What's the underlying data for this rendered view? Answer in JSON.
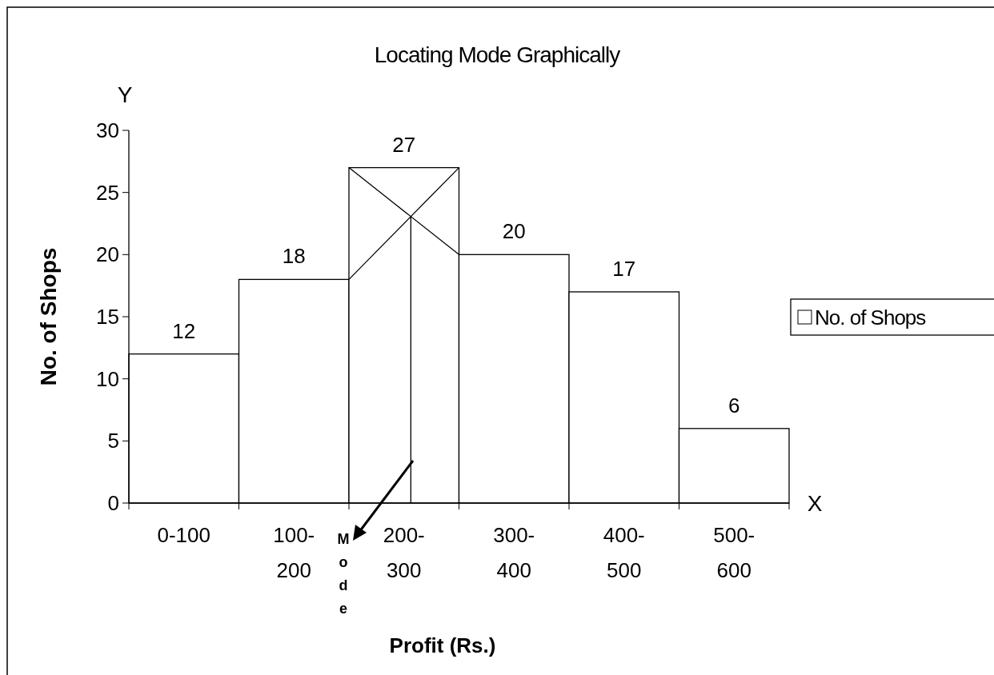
{
  "chart_data": {
    "type": "bar",
    "title": "Locating Mode Graphically",
    "xlabel": "Profit (Rs.)",
    "ylabel": "No. of Shops",
    "categories": [
      "0-100",
      "100-200",
      "200-300",
      "300-400",
      "400-500",
      "500-600"
    ],
    "series": [
      {
        "name": "No. of Shops",
        "color": "#ffffff",
        "values": [
          12,
          18,
          27,
          20,
          17,
          6
        ]
      }
    ],
    "ylim": [
      0,
      30
    ],
    "yticks": [
      0,
      5,
      10,
      15,
      20,
      25,
      30
    ],
    "data_labels": true,
    "legend": "right",
    "ref_lines": [
      {
        "axis": "x",
        "value": "200-300"
      }
    ],
    "annotations": [
      "Y",
      "X",
      "Mode"
    ]
  }
}
